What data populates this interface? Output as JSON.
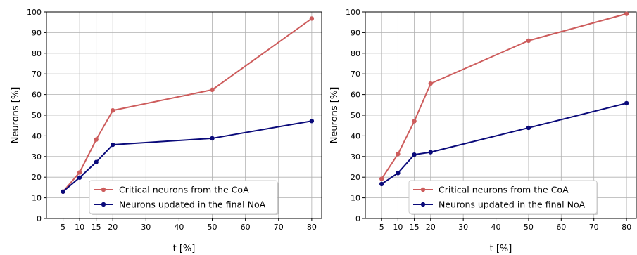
{
  "chart_data": [
    {
      "type": "line",
      "x": [
        5,
        10,
        15,
        20,
        50,
        80
      ],
      "xticks": [
        5,
        10,
        15,
        20,
        30,
        40,
        50,
        60,
        70,
        80
      ],
      "yticks": [
        0,
        10,
        20,
        30,
        40,
        50,
        60,
        70,
        80,
        90,
        100
      ],
      "xlim": [
        0,
        83
      ],
      "ylim": [
        0,
        100
      ],
      "xlabel": "t [%]",
      "ylabel": "Neurons [%]",
      "grid": true,
      "legend_position": "lower-center",
      "series": [
        {
          "name": "Critical neurons from the CoA",
          "color": "#cd5c5c",
          "values": [
            13,
            22.3,
            38.2,
            52.3,
            62.3,
            96.8
          ]
        },
        {
          "name": "Neurons updated in the final NoA",
          "color": "#0a0a7a",
          "values": [
            13,
            19.8,
            27.3,
            35.7,
            38.8,
            47.2
          ]
        }
      ]
    },
    {
      "type": "line",
      "x": [
        5,
        10,
        15,
        20,
        50,
        80
      ],
      "xticks": [
        5,
        10,
        15,
        20,
        30,
        40,
        50,
        60,
        70,
        80
      ],
      "yticks": [
        0,
        10,
        20,
        30,
        40,
        50,
        60,
        70,
        80,
        90,
        100
      ],
      "xlim": [
        0,
        83
      ],
      "ylim": [
        0,
        100
      ],
      "xlabel": "t [%]",
      "ylabel": "Neurons [%]",
      "grid": true,
      "legend_position": "lower-center",
      "series": [
        {
          "name": "Critical neurons from the CoA",
          "color": "#cd5c5c",
          "values": [
            19.2,
            31.2,
            47.1,
            65.3,
            86.1,
            99.1
          ]
        },
        {
          "name": "Neurons updated in the final NoA",
          "color": "#0a0a7a",
          "values": [
            16.7,
            22,
            30.9,
            32.1,
            43.9,
            55.8
          ]
        }
      ]
    }
  ]
}
